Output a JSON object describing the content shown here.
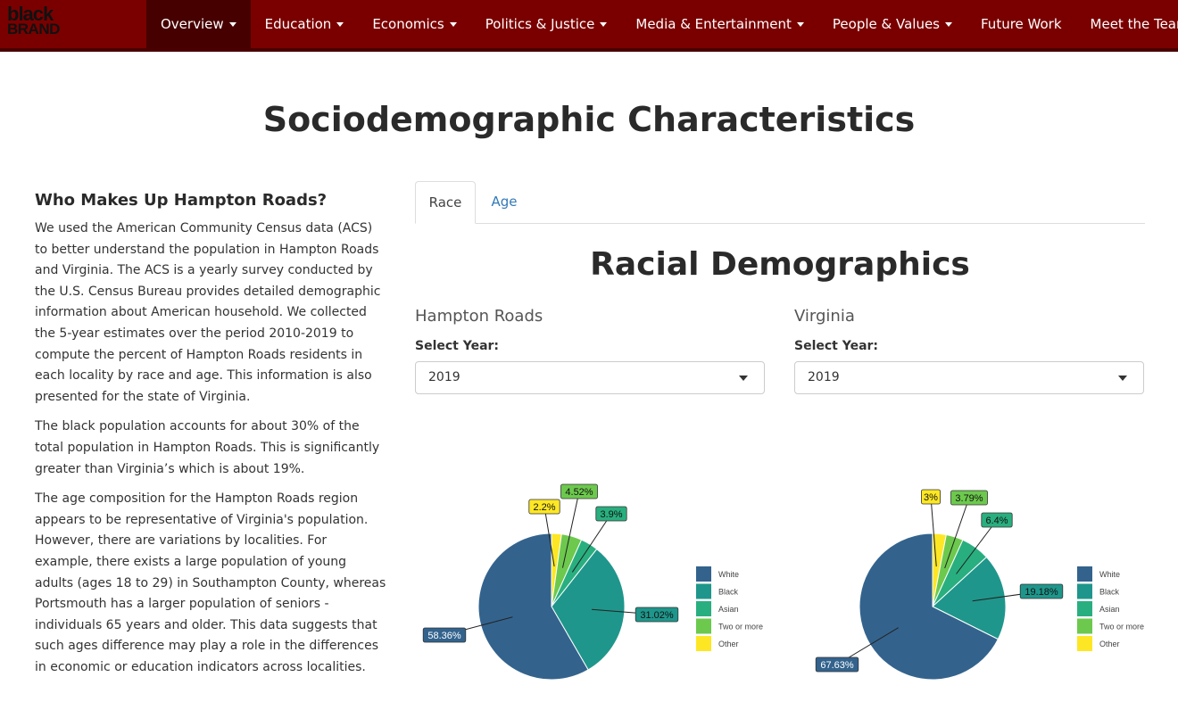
{
  "logo": {
    "line1": "black",
    "line2": "BRAND"
  },
  "nav": {
    "items": [
      {
        "label": "Overview",
        "dropdown": true,
        "active": true
      },
      {
        "label": "Education",
        "dropdown": true
      },
      {
        "label": "Economics",
        "dropdown": true
      },
      {
        "label": "Politics & Justice",
        "dropdown": true
      },
      {
        "label": "Media & Entertainment",
        "dropdown": true
      },
      {
        "label": "People & Values",
        "dropdown": true
      },
      {
        "label": "Future Work",
        "dropdown": false
      },
      {
        "label": "Meet the Team",
        "dropdown": true
      }
    ]
  },
  "page": {
    "title": "Sociodemographic Characteristics"
  },
  "left": {
    "heading": "Who Makes Up Hampton Roads?",
    "p1": "We used the American Community Census data (ACS) to better understand the population in Hampton Roads and Virginia. The ACS is a yearly survey conducted by the U.S. Census Bureau provides detailed demographic information about American household. We collected the 5-year estimates over the period 2010-2019 to compute the percent of Hampton Roads residents in each locality by race and age. This information is also presented for the state of Virginia.",
    "p2": "The black population accounts for about 30% of the total population in Hampton Roads. This is significantly greater than Virginia’s which is about 19%.",
    "p3": "The age composition for the Hampton Roads region appears to be representative of Virginia's population. However, there are variations by localities. For example, there exists a large population of young adults (ages 18 to 29) in Southampton County, whereas Portsmouth has a larger population of seniors - individuals 65 years and older. This data suggests that such ages difference may play a role in the differences in economic or education indicators across localities."
  },
  "tabs": {
    "race": "Race",
    "age": "Age",
    "active": "race"
  },
  "section": {
    "title": "Racial Demographics"
  },
  "hampton": {
    "name": "Hampton Roads",
    "select_label": "Select Year:",
    "year": "2019"
  },
  "virginia": {
    "name": "Virginia",
    "select_label": "Select Year:",
    "year": "2019"
  },
  "colors": {
    "navbar": "#7a0000",
    "active_nav": "#460000",
    "link": "#337ab7"
  },
  "chart_data": [
    {
      "type": "pie",
      "title": "",
      "categories": [
        "White",
        "Black",
        "Asian",
        "Two or more",
        "Other"
      ],
      "values": [
        58.36,
        31.02,
        3.9,
        4.52,
        2.2
      ],
      "labels": [
        "58.36%",
        "31.02%",
        "3.9%",
        "4.52%",
        "2.2%"
      ],
      "colors": [
        "#33638d",
        "#1f968b",
        "#29af7f",
        "#6cc94d",
        "#fde725"
      ],
      "legend": "right"
    },
    {
      "type": "pie",
      "title": "",
      "categories": [
        "White",
        "Black",
        "Asian",
        "Two or more",
        "Other"
      ],
      "values": [
        67.63,
        19.18,
        6.4,
        3.79,
        3
      ],
      "labels": [
        "67.63%",
        "19.18%",
        "6.4%",
        "3.79%",
        "3%"
      ],
      "colors": [
        "#33638d",
        "#1f968b",
        "#29af7f",
        "#6cc94d",
        "#fde725"
      ],
      "legend": "right"
    }
  ]
}
